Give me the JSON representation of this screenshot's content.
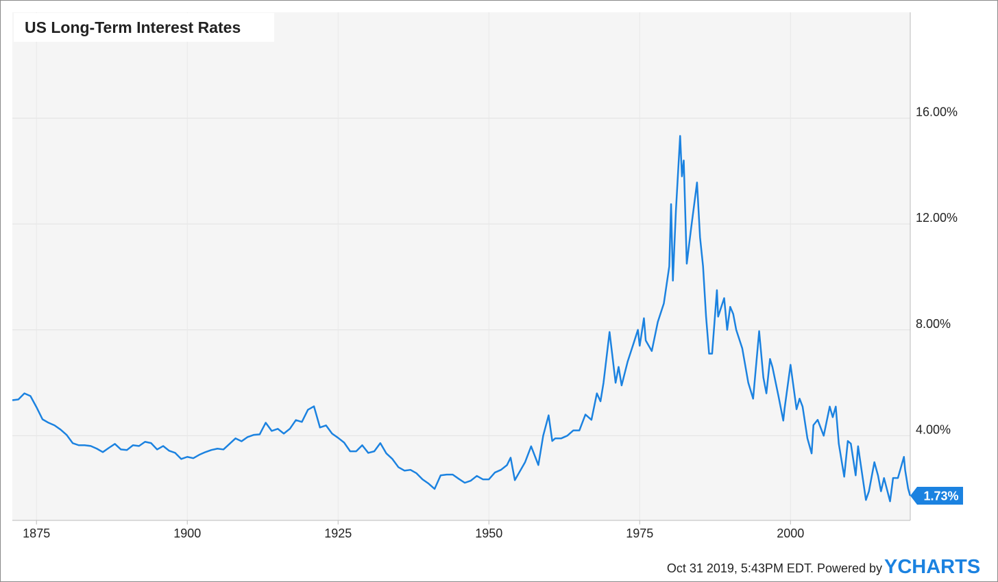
{
  "chart_data": {
    "type": "line",
    "title": "US Long-Term Interest Rates",
    "color": "#1b82e0",
    "x": [
      1871,
      1872,
      1873,
      1874,
      1875,
      1876,
      1877,
      1878,
      1879,
      1880,
      1881,
      1882,
      1883,
      1884,
      1885,
      1886,
      1887,
      1888,
      1889,
      1890,
      1891,
      1892,
      1893,
      1894,
      1895,
      1896,
      1897,
      1898,
      1899,
      1900,
      1901,
      1902,
      1903,
      1904,
      1905,
      1906,
      1907,
      1908,
      1909,
      1910,
      1911,
      1912,
      1913,
      1914,
      1915,
      1916,
      1917,
      1918,
      1919,
      1920,
      1921,
      1922,
      1923,
      1924,
      1925,
      1926,
      1927,
      1928,
      1929,
      1930,
      1931,
      1932,
      1933,
      1934,
      1935,
      1936,
      1937,
      1938,
      1939,
      1940,
      1941,
      1942,
      1943,
      1944,
      1945,
      1946,
      1947,
      1948,
      1949,
      1950,
      1951,
      1952,
      1953,
      1953.6,
      1954.3,
      1955,
      1956,
      1957,
      1958.2,
      1959,
      1959.9,
      1960.5,
      1961,
      1962,
      1963,
      1964,
      1965,
      1966,
      1967,
      1967.9,
      1968.5,
      1969,
      1970,
      1971,
      1971.5,
      1972,
      1973,
      1974,
      1974.7,
      1975,
      1975.7,
      1976,
      1977,
      1978,
      1979,
      1979.9,
      1980.2,
      1980.5,
      1981,
      1981.7,
      1982,
      1982.3,
      1982.8,
      1983.5,
      1984.5,
      1985,
      1985.5,
      1986,
      1986.5,
      1987,
      1987.8,
      1988,
      1989,
      1989.5,
      1990,
      1990.5,
      1991,
      1992,
      1993,
      1993.8,
      1994.8,
      1995.5,
      1996,
      1996.6,
      1997,
      1998,
      1998.8,
      1999,
      2000,
      2001,
      2001.5,
      2002,
      2002.8,
      2003.5,
      2003.8,
      2004.5,
      2005.5,
      2006.5,
      2007,
      2007.5,
      2008,
      2008.9,
      2009.5,
      2010,
      2010.8,
      2011.2,
      2012.5,
      2013,
      2013.9,
      2014.5,
      2015,
      2015.5,
      2016.5,
      2017,
      2017.8,
      2018.8,
      2019,
      2019.5,
      2019.83
    ],
    "values": [
      5.34,
      5.37,
      5.6,
      5.5,
      5.08,
      4.62,
      4.49,
      4.39,
      4.23,
      4.03,
      3.72,
      3.64,
      3.64,
      3.61,
      3.51,
      3.38,
      3.54,
      3.69,
      3.48,
      3.46,
      3.64,
      3.61,
      3.77,
      3.72,
      3.48,
      3.61,
      3.43,
      3.35,
      3.12,
      3.2,
      3.15,
      3.28,
      3.38,
      3.46,
      3.51,
      3.48,
      3.69,
      3.9,
      3.79,
      3.95,
      4.03,
      4.05,
      4.49,
      4.18,
      4.26,
      4.08,
      4.26,
      4.59,
      4.52,
      4.98,
      5.11,
      4.31,
      4.39,
      4.08,
      3.92,
      3.74,
      3.41,
      3.41,
      3.64,
      3.35,
      3.41,
      3.72,
      3.33,
      3.12,
      2.81,
      2.68,
      2.71,
      2.58,
      2.35,
      2.19,
      1.99,
      2.5,
      2.53,
      2.53,
      2.37,
      2.22,
      2.3,
      2.48,
      2.35,
      2.35,
      2.61,
      2.71,
      2.89,
      3.17,
      2.32,
      2.6,
      3.0,
      3.6,
      2.89,
      4.0,
      4.77,
      3.8,
      3.9,
      3.9,
      4.0,
      4.2,
      4.2,
      4.8,
      4.6,
      5.6,
      5.3,
      6.0,
      7.92,
      6.0,
      6.6,
      5.9,
      6.8,
      7.5,
      8.0,
      7.4,
      8.44,
      7.6,
      7.2,
      8.3,
      9.0,
      10.4,
      12.75,
      9.86,
      12.5,
      15.33,
      13.8,
      14.4,
      10.5,
      11.8,
      13.57,
      11.5,
      10.4,
      8.5,
      7.1,
      7.1,
      9.5,
      8.5,
      9.2,
      8.0,
      8.87,
      8.6,
      8.0,
      7.3,
      6.0,
      5.4,
      7.95,
      6.2,
      5.6,
      6.9,
      6.6,
      5.5,
      4.57,
      5.0,
      6.68,
      5.0,
      5.4,
      5.1,
      3.9,
      3.33,
      4.4,
      4.6,
      4.0,
      5.1,
      4.7,
      5.1,
      3.7,
      2.45,
      3.8,
      3.7,
      2.5,
      3.6,
      1.57,
      1.9,
      3.0,
      2.5,
      1.9,
      2.4,
      1.52,
      2.4,
      2.4,
      3.2,
      2.7,
      2.0,
      1.73
    ],
    "xlim": [
      1871,
      2019.85
    ],
    "ylim": [
      0.8,
      20
    ],
    "xticks": [
      1875,
      1900,
      1925,
      1950,
      1975,
      2000
    ],
    "yticks": [
      {
        "value": 4,
        "label": "4.00%"
      },
      {
        "value": 8,
        "label": "8.00%"
      },
      {
        "value": 12,
        "label": "12.00%"
      },
      {
        "value": 16,
        "label": "16.00%"
      }
    ],
    "grid": true,
    "annotation": {
      "value": 1.73,
      "label": "1.73%"
    },
    "footer": "Oct 31 2019, 5:43PM EDT. Powered by",
    "brand": "YCHARTS"
  }
}
